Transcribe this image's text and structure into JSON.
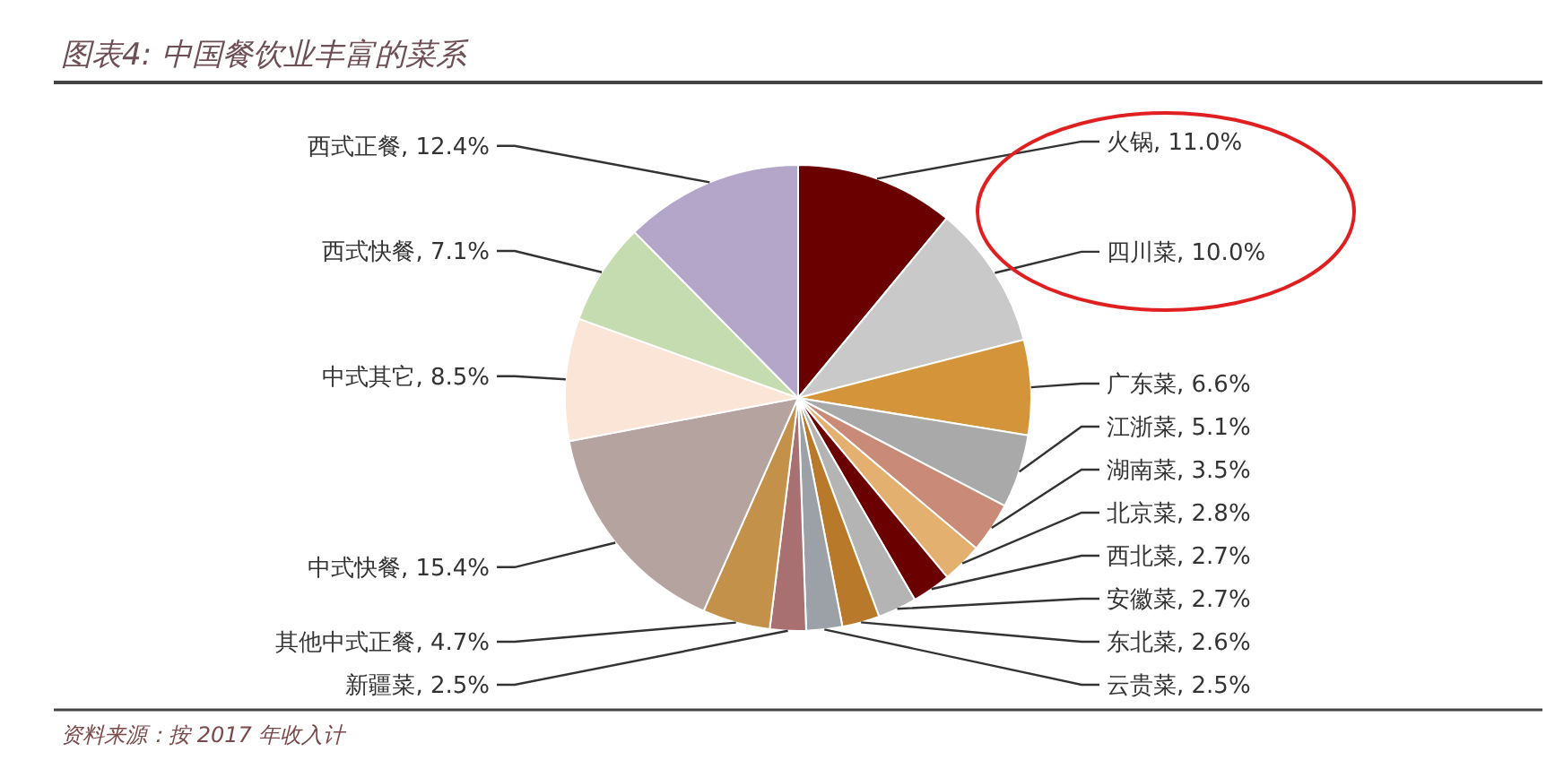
{
  "chart_data": {
    "type": "pie",
    "title": "图表4: 中国餐饮业丰富的菜系",
    "categories": [
      "火锅",
      "四川菜",
      "广东菜",
      "江浙菜",
      "湖南菜",
      "北京菜",
      "西北菜",
      "安徽菜",
      "东北菜",
      "云贵菜",
      "新疆菜",
      "其他中式正餐",
      "中式快餐",
      "中式其它",
      "西式快餐",
      "西式正餐"
    ],
    "values": [
      11.0,
      10.0,
      6.6,
      5.1,
      3.5,
      2.8,
      2.7,
      2.7,
      2.6,
      2.5,
      2.5,
      4.7,
      15.4,
      8.5,
      7.1,
      12.4
    ],
    "value_labels": [
      "11.0%",
      "10.0%",
      "6.6%",
      "5.1%",
      "3.5%",
      "2.8%",
      "2.7%",
      "2.7%",
      "2.6%",
      "2.5%",
      "2.5%",
      "4.7%",
      "15.4%",
      "8.5%",
      "7.1%",
      "12.4%"
    ],
    "colors": [
      "#6b0000",
      "#c9c9c9",
      "#d4943a",
      "#a9a9a9",
      "#c98a78",
      "#e3b070",
      "#6b0000",
      "#b4b4b4",
      "#b87a2a",
      "#9ba1a6",
      "#a87070",
      "#c4914a",
      "#b5a3a0",
      "#fbe5d6",
      "#c5dbb0",
      "#b3a6c9"
    ],
    "annotations": [
      "资料来源：按 2017 年收入计"
    ]
  }
}
